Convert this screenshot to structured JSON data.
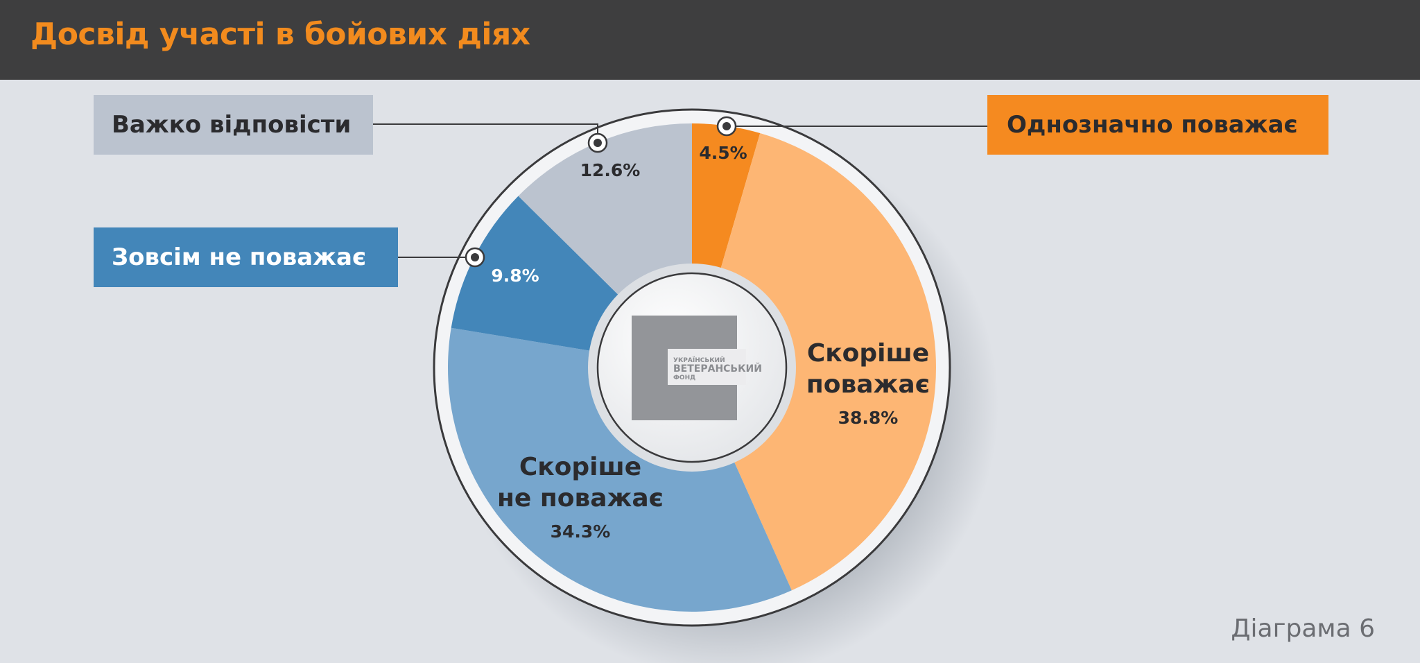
{
  "header": {
    "title": "Досвід участі в бойових діях"
  },
  "footer": {
    "diagram_label": "Діаграма 6"
  },
  "logo": {
    "line1": "УКРАЇНСЬКИЙ",
    "line2": "ВЕТЕРАНСЬКИЙ",
    "line3": "ФОНД"
  },
  "chart_data": {
    "type": "pie",
    "title": "Досвід участі в бойових діях",
    "legend_placement": "callouts",
    "slices": [
      {
        "label": "Однозначно поважає",
        "value": 4.5,
        "value_label": "4.5%",
        "color": "#f58a20"
      },
      {
        "label": "Скоріше поважає",
        "value": 38.8,
        "value_label": "38.8%",
        "color": "#fdb674"
      },
      {
        "label": "Скоріше не поважає",
        "value": 34.3,
        "value_label": "34.3%",
        "color": "#77a6cd"
      },
      {
        "label": "Зовсім не поважає",
        "value": 9.8,
        "value_label": "9.8%",
        "color": "#4386b9"
      },
      {
        "label": "Важко відповісти",
        "value": 12.6,
        "value_label": "12.6%",
        "color": "#bbc3cf"
      }
    ],
    "inline_labels": {
      "likely_respects_line1": "Скоріше",
      "likely_respects_line2": "поважає",
      "likely_not_line1": "Скоріше",
      "likely_not_line2": "не поважає"
    }
  }
}
